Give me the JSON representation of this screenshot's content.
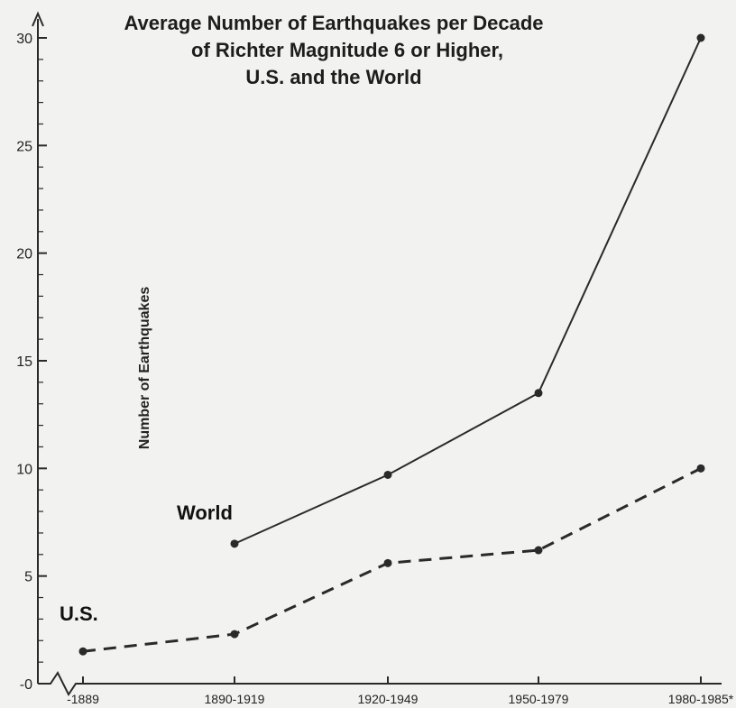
{
  "chart_data": {
    "type": "line",
    "title_lines": [
      "Average Number of Earthquakes per Decade",
      "of Richter Magnitude 6 or Higher,",
      "U.S. and the World"
    ],
    "xlabel": "",
    "ylabel": "Number of Earthquakes",
    "categories": [
      "-1889",
      "1890-1919",
      "1920-1949",
      "1950-1979",
      "1980-1985*"
    ],
    "y_ticks": [
      "0",
      "5",
      "10",
      "15",
      "20",
      "25",
      "30"
    ],
    "ylim": [
      0,
      31
    ],
    "grid": false,
    "series": [
      {
        "name": "World",
        "style": "solid",
        "color": "#2a2a2a",
        "values": [
          null,
          6.5,
          9.7,
          13.5,
          30
        ]
      },
      {
        "name": "U.S.",
        "style": "dashed",
        "color": "#2a2a2a",
        "values": [
          1.5,
          2.3,
          5.6,
          6.2,
          10
        ]
      }
    ]
  },
  "colors": {
    "background": "#f2f2f0",
    "ink": "#2a2a2a"
  }
}
